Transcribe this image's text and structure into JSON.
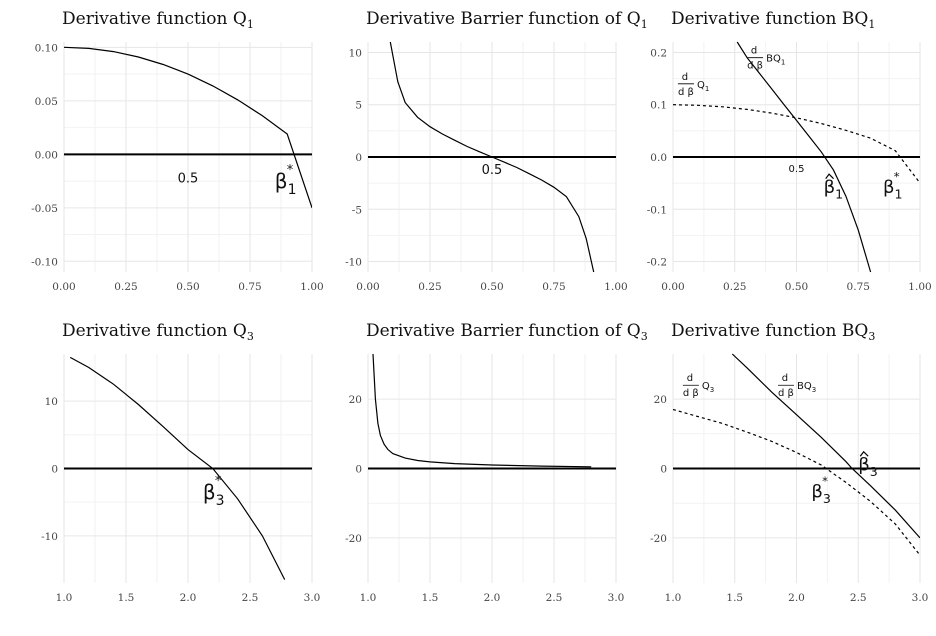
{
  "chart_data": [
    {
      "type": "line",
      "title": "Derivative function  Q",
      "title_sub": "1",
      "xlim": [
        0,
        1
      ],
      "ylim": [
        -0.11,
        0.105
      ],
      "xticks": [
        "0.00",
        "0.25",
        "0.50",
        "0.75",
        "1.00"
      ],
      "yticks": [
        "0.10",
        "0.05",
        "0.00",
        "-0.05",
        "-0.10"
      ],
      "xtick_vals": [
        0,
        0.25,
        0.5,
        0.75,
        1
      ],
      "ytick_vals": [
        0.1,
        0.05,
        0,
        -0.05,
        -0.1
      ],
      "series": [
        {
          "style": "solid",
          "x": [
            0,
            0.1,
            0.2,
            0.3,
            0.4,
            0.5,
            0.6,
            0.7,
            0.8,
            0.9,
            1.0
          ],
          "y": [
            0.1,
            0.099,
            0.096,
            0.091,
            0.084,
            0.075,
            0.064,
            0.051,
            0.036,
            0.019,
            -0.05
          ]
        }
      ],
      "annotations": [
        {
          "text": "0.5",
          "x": 0.5,
          "y": -0.022,
          "size": 13
        },
        {
          "text": "β",
          "sub": "1",
          "sup": "*",
          "x": 0.85,
          "y": -0.025,
          "size": 20
        }
      ]
    },
    {
      "type": "line",
      "title": "Derivative Barrier function of  Q",
      "title_sub": "1",
      "xlim": [
        0,
        1
      ],
      "ylim": [
        -11,
        11
      ],
      "xticks": [
        "0.00",
        "0.25",
        "0.50",
        "0.75",
        "1.00"
      ],
      "yticks": [
        "10",
        "5",
        "0",
        "-5",
        "-10"
      ],
      "xtick_vals": [
        0,
        0.25,
        0.5,
        0.75,
        1
      ],
      "ytick_vals": [
        10,
        5,
        0,
        -5,
        -10
      ],
      "series": [
        {
          "style": "solid",
          "x": [
            0.09,
            0.12,
            0.15,
            0.2,
            0.25,
            0.3,
            0.35,
            0.4,
            0.45,
            0.5,
            0.55,
            0.6,
            0.65,
            0.7,
            0.75,
            0.8,
            0.85,
            0.88,
            0.91
          ],
          "y": [
            11,
            7.2,
            5.2,
            3.8,
            2.9,
            2.2,
            1.6,
            1.0,
            0.5,
            0,
            -0.5,
            -1.0,
            -1.6,
            -2.2,
            -2.9,
            -3.8,
            -5.7,
            -7.8,
            -11
          ]
        }
      ],
      "annotations": [
        {
          "text": "0.5",
          "x": 0.5,
          "y": -1.2,
          "size": 13
        }
      ]
    },
    {
      "type": "line",
      "title": "Derivative function  BQ",
      "title_sub": "1",
      "xlim": [
        0,
        1
      ],
      "ylim": [
        -0.22,
        0.22
      ],
      "xticks": [
        "0.00",
        "0.25",
        "0.50",
        "0.75",
        "1.00"
      ],
      "yticks": [
        "0.2",
        "0.1",
        "0.0",
        "-0.1",
        "-0.2"
      ],
      "xtick_vals": [
        0,
        0.25,
        0.5,
        0.75,
        1
      ],
      "ytick_vals": [
        0.2,
        0.1,
        0,
        -0.1,
        -0.2
      ],
      "series": [
        {
          "style": "dashed",
          "x": [
            0,
            0.1,
            0.2,
            0.3,
            0.4,
            0.5,
            0.6,
            0.7,
            0.8,
            0.9,
            1.0
          ],
          "y": [
            0.1,
            0.099,
            0.096,
            0.091,
            0.084,
            0.075,
            0.064,
            0.051,
            0.036,
            0.012,
            -0.05
          ]
        },
        {
          "style": "solid",
          "x": [
            0.26,
            0.3,
            0.35,
            0.4,
            0.45,
            0.5,
            0.55,
            0.6,
            0.65,
            0.7,
            0.75,
            0.8
          ],
          "y": [
            0.22,
            0.19,
            0.16,
            0.13,
            0.1,
            0.07,
            0.04,
            0.01,
            -0.025,
            -0.075,
            -0.14,
            -0.22
          ]
        }
      ],
      "annotations": [
        {
          "frac": true,
          "num": "d",
          "den": "d β",
          "label": "Q",
          "sub": "1",
          "x": 0.02,
          "y": 0.14,
          "size": 10
        },
        {
          "frac": true,
          "num": "d",
          "den": "d β",
          "label": "BQ",
          "sub": "1",
          "x": 0.3,
          "y": 0.19,
          "size": 10
        },
        {
          "text": "0.5",
          "x": 0.5,
          "y": -0.022,
          "size": 10
        },
        {
          "text": "β",
          "sub": "1",
          "hat": true,
          "x": 0.61,
          "y": -0.057,
          "size": 18
        },
        {
          "text": "β",
          "sub": "1",
          "sup": "*",
          "x": 0.85,
          "y": -0.057,
          "size": 18
        }
      ]
    },
    {
      "type": "line",
      "title": "Derivative function  Q",
      "title_sub": "3",
      "xlim": [
        1,
        3
      ],
      "ylim": [
        -17,
        17
      ],
      "xticks": [
        "1.0",
        "1.5",
        "2.0",
        "2.5",
        "3.0"
      ],
      "yticks": [
        "10",
        "0",
        "-10"
      ],
      "xtick_vals": [
        1,
        1.5,
        2,
        2.5,
        3
      ],
      "ytick_vals": [
        10,
        0,
        -10
      ],
      "series": [
        {
          "style": "solid",
          "x": [
            1.05,
            1.2,
            1.4,
            1.6,
            1.8,
            2.0,
            2.2,
            2.4,
            2.6,
            2.78
          ],
          "y": [
            16.5,
            15.0,
            12.5,
            9.5,
            6.2,
            2.8,
            0,
            -4.5,
            -10.0,
            -16.5
          ]
        }
      ],
      "annotations": [
        {
          "text": "β",
          "sub": "3",
          "sup": "*",
          "x": 2.12,
          "y": -3.5,
          "size": 20
        }
      ]
    },
    {
      "type": "line",
      "title": "Derivative Barrier function of  Q",
      "title_sub": "3",
      "xlim": [
        1,
        3
      ],
      "ylim": [
        -33,
        33
      ],
      "xticks": [
        "1.0",
        "1.5",
        "2.0",
        "2.5",
        "3.0"
      ],
      "yticks": [
        "20",
        "0",
        "-20"
      ],
      "xtick_vals": [
        1,
        1.5,
        2,
        2.5,
        3
      ],
      "ytick_vals": [
        20,
        0,
        -20
      ],
      "series": [
        {
          "style": "solid",
          "x": [
            1.04,
            1.06,
            1.08,
            1.1,
            1.13,
            1.16,
            1.2,
            1.3,
            1.4,
            1.5,
            1.7,
            2.0,
            2.4,
            2.8
          ],
          "y": [
            33,
            20,
            13,
            9.5,
            7,
            5.5,
            4.3,
            3.0,
            2.3,
            1.9,
            1.4,
            1.0,
            0.7,
            0.5
          ]
        }
      ],
      "annotations": []
    },
    {
      "type": "line",
      "title": "Derivative function  BQ",
      "title_sub": "3",
      "xlim": [
        1,
        3
      ],
      "ylim": [
        -33,
        33
      ],
      "xticks": [
        "1.0",
        "1.5",
        "2.0",
        "2.5",
        "3.0"
      ],
      "yticks": [
        "20",
        "0",
        "-20"
      ],
      "xtick_vals": [
        1,
        1.5,
        2,
        2.5,
        3
      ],
      "ytick_vals": [
        20,
        0,
        -20
      ],
      "series": [
        {
          "style": "dashed",
          "x": [
            1.0,
            1.2,
            1.4,
            1.6,
            1.8,
            2.0,
            2.2,
            2.4,
            2.6,
            2.8,
            3.0
          ],
          "y": [
            17,
            15,
            13,
            10.5,
            7.8,
            4.6,
            1.0,
            -4.0,
            -9.5,
            -16.0,
            -25.0
          ]
        },
        {
          "style": "solid",
          "x": [
            1.48,
            1.6,
            1.8,
            2.0,
            2.2,
            2.4,
            2.45,
            2.6,
            2.8,
            3.0
          ],
          "y": [
            33,
            29,
            22,
            15.5,
            9,
            2,
            0,
            -5,
            -12,
            -20
          ]
        }
      ],
      "annotations": [
        {
          "frac": true,
          "num": "d",
          "den": "d β",
          "label": "Q",
          "sub": "3",
          "x": 1.08,
          "y": 24,
          "size": 10
        },
        {
          "frac": true,
          "num": "d",
          "den": "d β",
          "label": "BQ",
          "sub": "3",
          "x": 1.85,
          "y": 24,
          "size": 10
        },
        {
          "text": "β",
          "sub": "3",
          "hat": true,
          "x": 2.5,
          "y": 1.2,
          "size": 18
        },
        {
          "text": "β",
          "sub": "3",
          "sup": "*",
          "x": 2.12,
          "y": -6.5,
          "size": 18
        }
      ]
    }
  ]
}
